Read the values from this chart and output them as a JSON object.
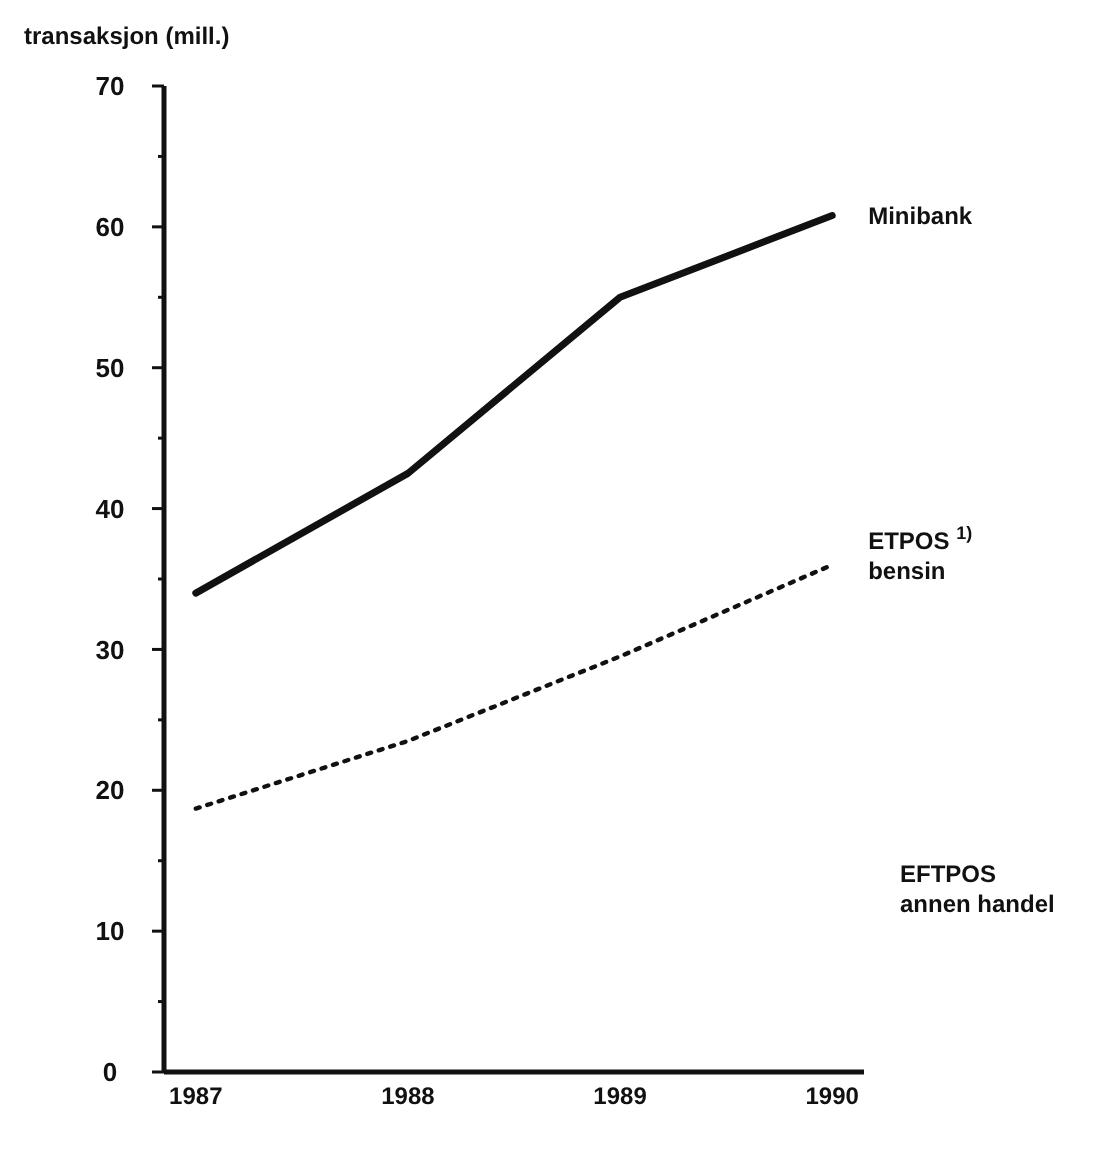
{
  "chart_data": {
    "type": "line",
    "ylabel": "transaksjon (mill.)",
    "x": [
      1987,
      1988,
      1989,
      1990
    ],
    "series": [
      {
        "name": "Minibank",
        "color": "#111111",
        "values": [
          34,
          42.5,
          55,
          60.8
        ],
        "line_style": "solid"
      },
      {
        "name": "ETPOS $^{1)}$\nbensin",
        "color": "#111111",
        "values": [
          18.7,
          23.5,
          29.5,
          36
        ],
        "line_style": "dotted"
      }
    ],
    "annotations": [
      "EFTPOS\nannen handel"
    ],
    "xlim": [
      1986.85,
      1990.15
    ],
    "xticks": [
      1987,
      1988,
      1989,
      1990
    ],
    "ylim": [
      0,
      70
    ],
    "yticks": [
      0,
      {
        "value": 5,
        "label": null
      },
      10,
      {
        "value": 15,
        "label": null
      },
      20,
      {
        "value": 25,
        "label": null
      },
      30,
      {
        "value": 35,
        "label": null
      },
      40,
      {
        "value": 45,
        "label": null
      },
      50,
      {
        "value": 55,
        "label": null
      },
      60,
      {
        "value": 65,
        "label": null
      },
      70
    ],
    "grid": false,
    "marker": "none"
  }
}
